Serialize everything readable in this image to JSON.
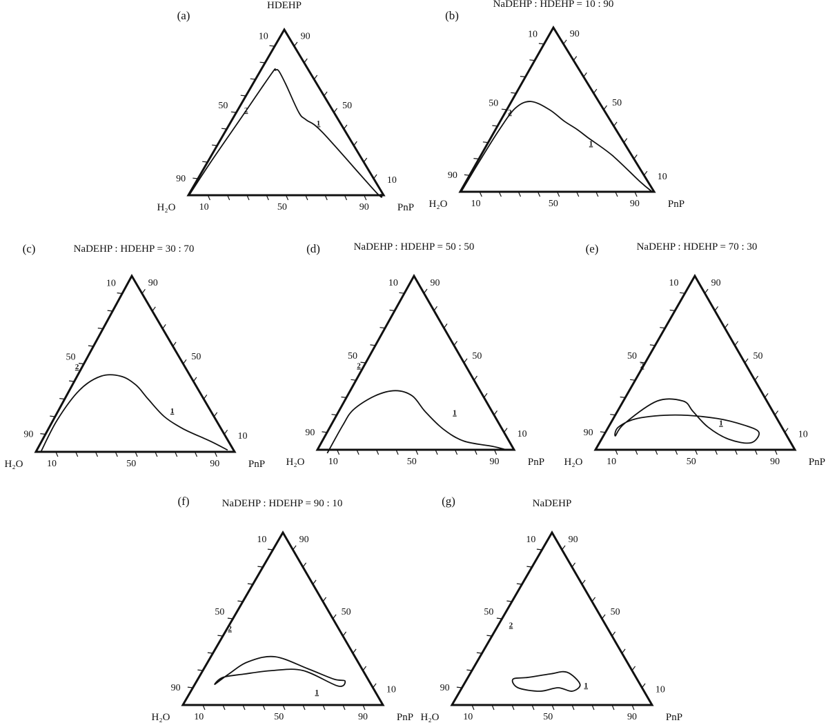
{
  "corner_labels": {
    "left": "H₂O",
    "right": "PnP"
  },
  "axis_numbers": {
    "low": "10",
    "mid": "50",
    "high": "90"
  },
  "region_labels": {
    "one_phase": "1",
    "two_phase": "2"
  },
  "panels": [
    {
      "id": "a",
      "letter": "(a)",
      "title": "HDEHP",
      "boundary": [
        [
          0.995,
          0.004
        ],
        [
          0.8,
          0.015
        ],
        [
          0.5,
          0.04
        ],
        [
          0.2,
          0.065
        ],
        [
          0.17,
          0.075
        ],
        [
          0.155,
          0.095
        ],
        [
          0.16,
          0.17
        ],
        [
          0.18,
          0.32
        ],
        [
          0.165,
          0.38
        ],
        [
          0.12,
          0.5
        ],
        [
          0.03,
          0.95
        ],
        [
          0.01,
          0.985
        ]
      ]
    },
    {
      "id": "b",
      "letter": "(b)",
      "title": "NaDEHP : HDEHP = 10 : 90",
      "boundary": [
        [
          0.99,
          0.005
        ],
        [
          0.8,
          0.01
        ],
        [
          0.6,
          0.02
        ],
        [
          0.45,
          0.04
        ],
        [
          0.35,
          0.1
        ],
        [
          0.28,
          0.22
        ],
        [
          0.24,
          0.33
        ],
        [
          0.2,
          0.42
        ],
        [
          0.17,
          0.5
        ],
        [
          0.1,
          0.68
        ],
        [
          0.04,
          0.9
        ],
        [
          0.01,
          0.99
        ]
      ]
    },
    {
      "id": "c",
      "letter": "(c)",
      "title": "NaDEHP : HDEHP = 30 : 70",
      "boundary": [
        [
          0.97,
          0.025
        ],
        [
          0.8,
          0.02
        ],
        [
          0.6,
          0.05
        ],
        [
          0.45,
          0.12
        ],
        [
          0.35,
          0.22
        ],
        [
          0.3,
          0.32
        ],
        [
          0.28,
          0.42
        ],
        [
          0.25,
          0.55
        ],
        [
          0.19,
          0.68
        ],
        [
          0.09,
          0.85
        ],
        [
          0.03,
          0.96
        ]
      ]
    },
    {
      "id": "d",
      "letter": "(d)",
      "title": "NaDEHP : HDEHP = 50 : 50",
      "boundary": [
        [
          0.96,
          0.06
        ],
        [
          0.8,
          0.06
        ],
        [
          0.7,
          0.07
        ],
        [
          0.55,
          0.14
        ],
        [
          0.43,
          0.23
        ],
        [
          0.36,
          0.33
        ],
        [
          0.34,
          0.44
        ],
        [
          0.3,
          0.58
        ],
        [
          0.23,
          0.72
        ],
        [
          0.1,
          0.88
        ],
        [
          0.04,
          0.96
        ]
      ]
    },
    {
      "id": "e",
      "letter": "(e)",
      "title": "NaDEHP : HDEHP = 70 : 30",
      "boundary": [
        [
          0.86,
          0.06
        ],
        [
          0.78,
          0.07
        ],
        [
          0.55,
          0.17
        ],
        [
          0.42,
          0.3
        ],
        [
          0.4,
          0.38
        ],
        [
          0.37,
          0.5
        ],
        [
          0.3,
          0.64
        ],
        [
          0.2,
          0.76
        ],
        [
          0.13,
          0.77
        ],
        [
          0.18,
          0.68
        ],
        [
          0.3,
          0.52
        ],
        [
          0.5,
          0.3
        ],
        [
          0.7,
          0.12
        ],
        [
          0.82,
          0.05
        ]
      ]
    },
    {
      "id": "f",
      "letter": "(f)",
      "title": "NaDEHP : HDEHP = 90 : 10",
      "boundary": [
        [
          0.78,
          0.1
        ],
        [
          0.68,
          0.14
        ],
        [
          0.55,
          0.2
        ],
        [
          0.4,
          0.32
        ],
        [
          0.27,
          0.52
        ],
        [
          0.17,
          0.68
        ],
        [
          0.12,
          0.74
        ],
        [
          0.17,
          0.72
        ],
        [
          0.3,
          0.5
        ],
        [
          0.45,
          0.35
        ],
        [
          0.6,
          0.22
        ],
        [
          0.72,
          0.12
        ]
      ]
    },
    {
      "id": "g",
      "letter": "(g)",
      "title": "NaDEHP",
      "boundary": [
        [
          0.62,
          0.23
        ],
        [
          0.54,
          0.3
        ],
        [
          0.42,
          0.4
        ],
        [
          0.33,
          0.48
        ],
        [
          0.3,
          0.58
        ],
        [
          0.36,
          0.56
        ],
        [
          0.42,
          0.48
        ],
        [
          0.52,
          0.4
        ],
        [
          0.62,
          0.28
        ]
      ]
    }
  ]
}
